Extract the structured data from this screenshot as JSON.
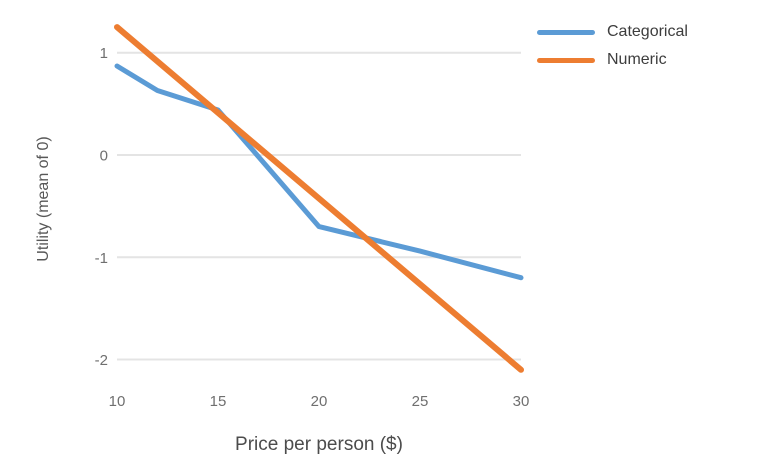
{
  "chart_data": {
    "type": "line",
    "title": "",
    "xlabel": "Price per person ($)",
    "ylabel": "Utility (mean of 0)",
    "xlim": [
      10,
      30
    ],
    "ylim": [
      -2.2,
      1.3
    ],
    "x_ticks": [
      10,
      15,
      20,
      25,
      30
    ],
    "y_ticks": [
      1,
      0,
      -1,
      -2
    ],
    "grid": "horizontal",
    "gridline_color": "#e4e4e4",
    "background": "#ffffff",
    "legend_position": "top-right",
    "series": [
      {
        "name": "Categorical",
        "color": "#5b9bd5",
        "line_width": 5,
        "x": [
          10,
          12,
          15,
          20,
          25,
          30
        ],
        "values": [
          0.87,
          0.63,
          0.44,
          -0.7,
          -0.94,
          -1.2
        ]
      },
      {
        "name": "Numeric",
        "color": "#ed7d31",
        "line_width": 6,
        "x": [
          10,
          30
        ],
        "values": [
          1.25,
          -2.1
        ]
      }
    ]
  }
}
